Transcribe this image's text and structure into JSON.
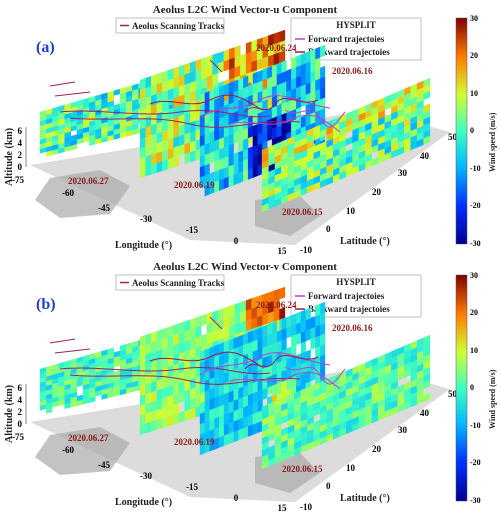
{
  "chart_data": [
    {
      "type": "heatmap",
      "panel_label": "(a)",
      "title": "Aeolus L2C Wind Vector-u Component",
      "legend": {
        "tracks_label": "Aeolus Scanning Tracks",
        "hysplit_title": "HYSPLIT",
        "forward_label": "Forward trajectoies",
        "backward_label": "Backward trajectoies"
      },
      "xlabel": "Longitude (°)",
      "ylabel": "Latitude (°)",
      "zlabel": "Altitude (km)",
      "x_ticks": [
        "-75",
        "-60",
        "-45",
        "-30",
        "-15",
        "0",
        "15"
      ],
      "y_ticks": [
        "-10",
        "0",
        "10",
        "20",
        "30",
        "40",
        "50"
      ],
      "z_ticks": [
        "0",
        "2",
        "4",
        "6"
      ],
      "dates": [
        "2020.06.27",
        "2020.06.19",
        "2020.06.15",
        "2020.06.24",
        "2020.06.16"
      ],
      "colorbar": {
        "label": "Wind speed (m/s)",
        "ticks": [
          "-30",
          "-20",
          "-10",
          "0",
          "10",
          "20",
          "30"
        ],
        "range": [
          -30,
          30
        ]
      }
    },
    {
      "type": "heatmap",
      "panel_label": "(b)",
      "title": "Aeolus L2C Wind Vector-v Component",
      "legend": {
        "tracks_label": "Aeolus Scanning Tracks",
        "hysplit_title": "HYSPLIT",
        "forward_label": "Forward trajectoies",
        "backward_label": "Backward trajectoies"
      },
      "xlabel": "Longitude (°)",
      "ylabel": "Latitude (°)",
      "zlabel": "Altitude (km)",
      "x_ticks": [
        "-75",
        "-60",
        "-45",
        "-30",
        "-15",
        "0",
        "15"
      ],
      "y_ticks": [
        "-10",
        "0",
        "10",
        "20",
        "30",
        "40",
        "50"
      ],
      "z_ticks": [
        "0",
        "2",
        "4",
        "6"
      ],
      "dates": [
        "2020.06.27",
        "2020.06.19",
        "2020.06.15",
        "2020.06.24",
        "2020.06.16"
      ],
      "colorbar": {
        "label": "Wind speed (m/s)",
        "ticks": [
          "-30",
          "-20",
          "-10",
          "0",
          "10",
          "20",
          "30"
        ],
        "range": [
          -30,
          30
        ]
      }
    }
  ],
  "colors": {
    "track": "#a02060",
    "forward": "#c040c0",
    "backward": "#a01848",
    "date_text": "#8b1a1a",
    "panel_label": "#1f3fd0",
    "ground": "#d7d7d7",
    "land": "#a9a9a9"
  }
}
